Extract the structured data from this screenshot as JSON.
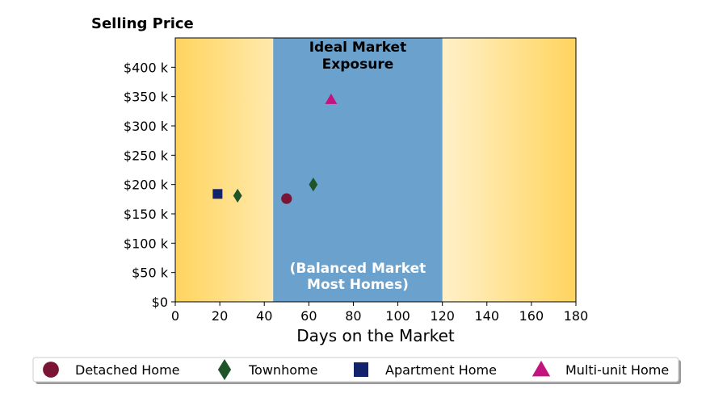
{
  "chart_data": {
    "type": "scatter",
    "title": "",
    "ylabel": "Selling Price",
    "xlabel": "Days on the Market",
    "xlim": [
      0,
      180
    ],
    "ylim": [
      0,
      450000
    ],
    "x_ticks": [
      0,
      20,
      40,
      60,
      80,
      100,
      120,
      140,
      160,
      180
    ],
    "x_tick_labels": [
      "0",
      "20",
      "40",
      "60",
      "80",
      "100",
      "120",
      "140",
      "160",
      "180"
    ],
    "y_ticks": [
      0,
      50000,
      100000,
      150000,
      200000,
      250000,
      300000,
      350000,
      400000
    ],
    "y_tick_labels": [
      "$0",
      "$50 k",
      "$100 k",
      "$150 k",
      "$200 k",
      "$250 k",
      "$300 k",
      "$350 k",
      "$400 k"
    ],
    "grid": false,
    "background_gradient": {
      "edge_color": "#ffd45e",
      "center_color": "#ffffff"
    },
    "bands": [
      {
        "x_start": 44,
        "x_end": 120,
        "color": "#6aa1cd",
        "label_top": [
          "Ideal Market",
          "Exposure"
        ],
        "label_bottom": [
          "(Balanced Market",
          "Most Homes)"
        ]
      }
    ],
    "series": [
      {
        "name": "Detached Home",
        "marker": "circle",
        "color": "#7b1535",
        "points": [
          {
            "x": 50,
            "y": 176000
          }
        ]
      },
      {
        "name": "Townhome",
        "marker": "diamond",
        "color": "#1f5428",
        "points": [
          {
            "x": 28,
            "y": 181000
          },
          {
            "x": 62,
            "y": 200000
          }
        ]
      },
      {
        "name": "Apartment Home",
        "marker": "square",
        "color": "#13236b",
        "points": [
          {
            "x": 19,
            "y": 184000
          }
        ]
      },
      {
        "name": "Multi-unit Home",
        "marker": "triangle",
        "color": "#c4137f",
        "points": [
          {
            "x": 70,
            "y": 345000
          }
        ]
      }
    ],
    "legend": {
      "position": "bottom-center",
      "columns": 4
    }
  }
}
